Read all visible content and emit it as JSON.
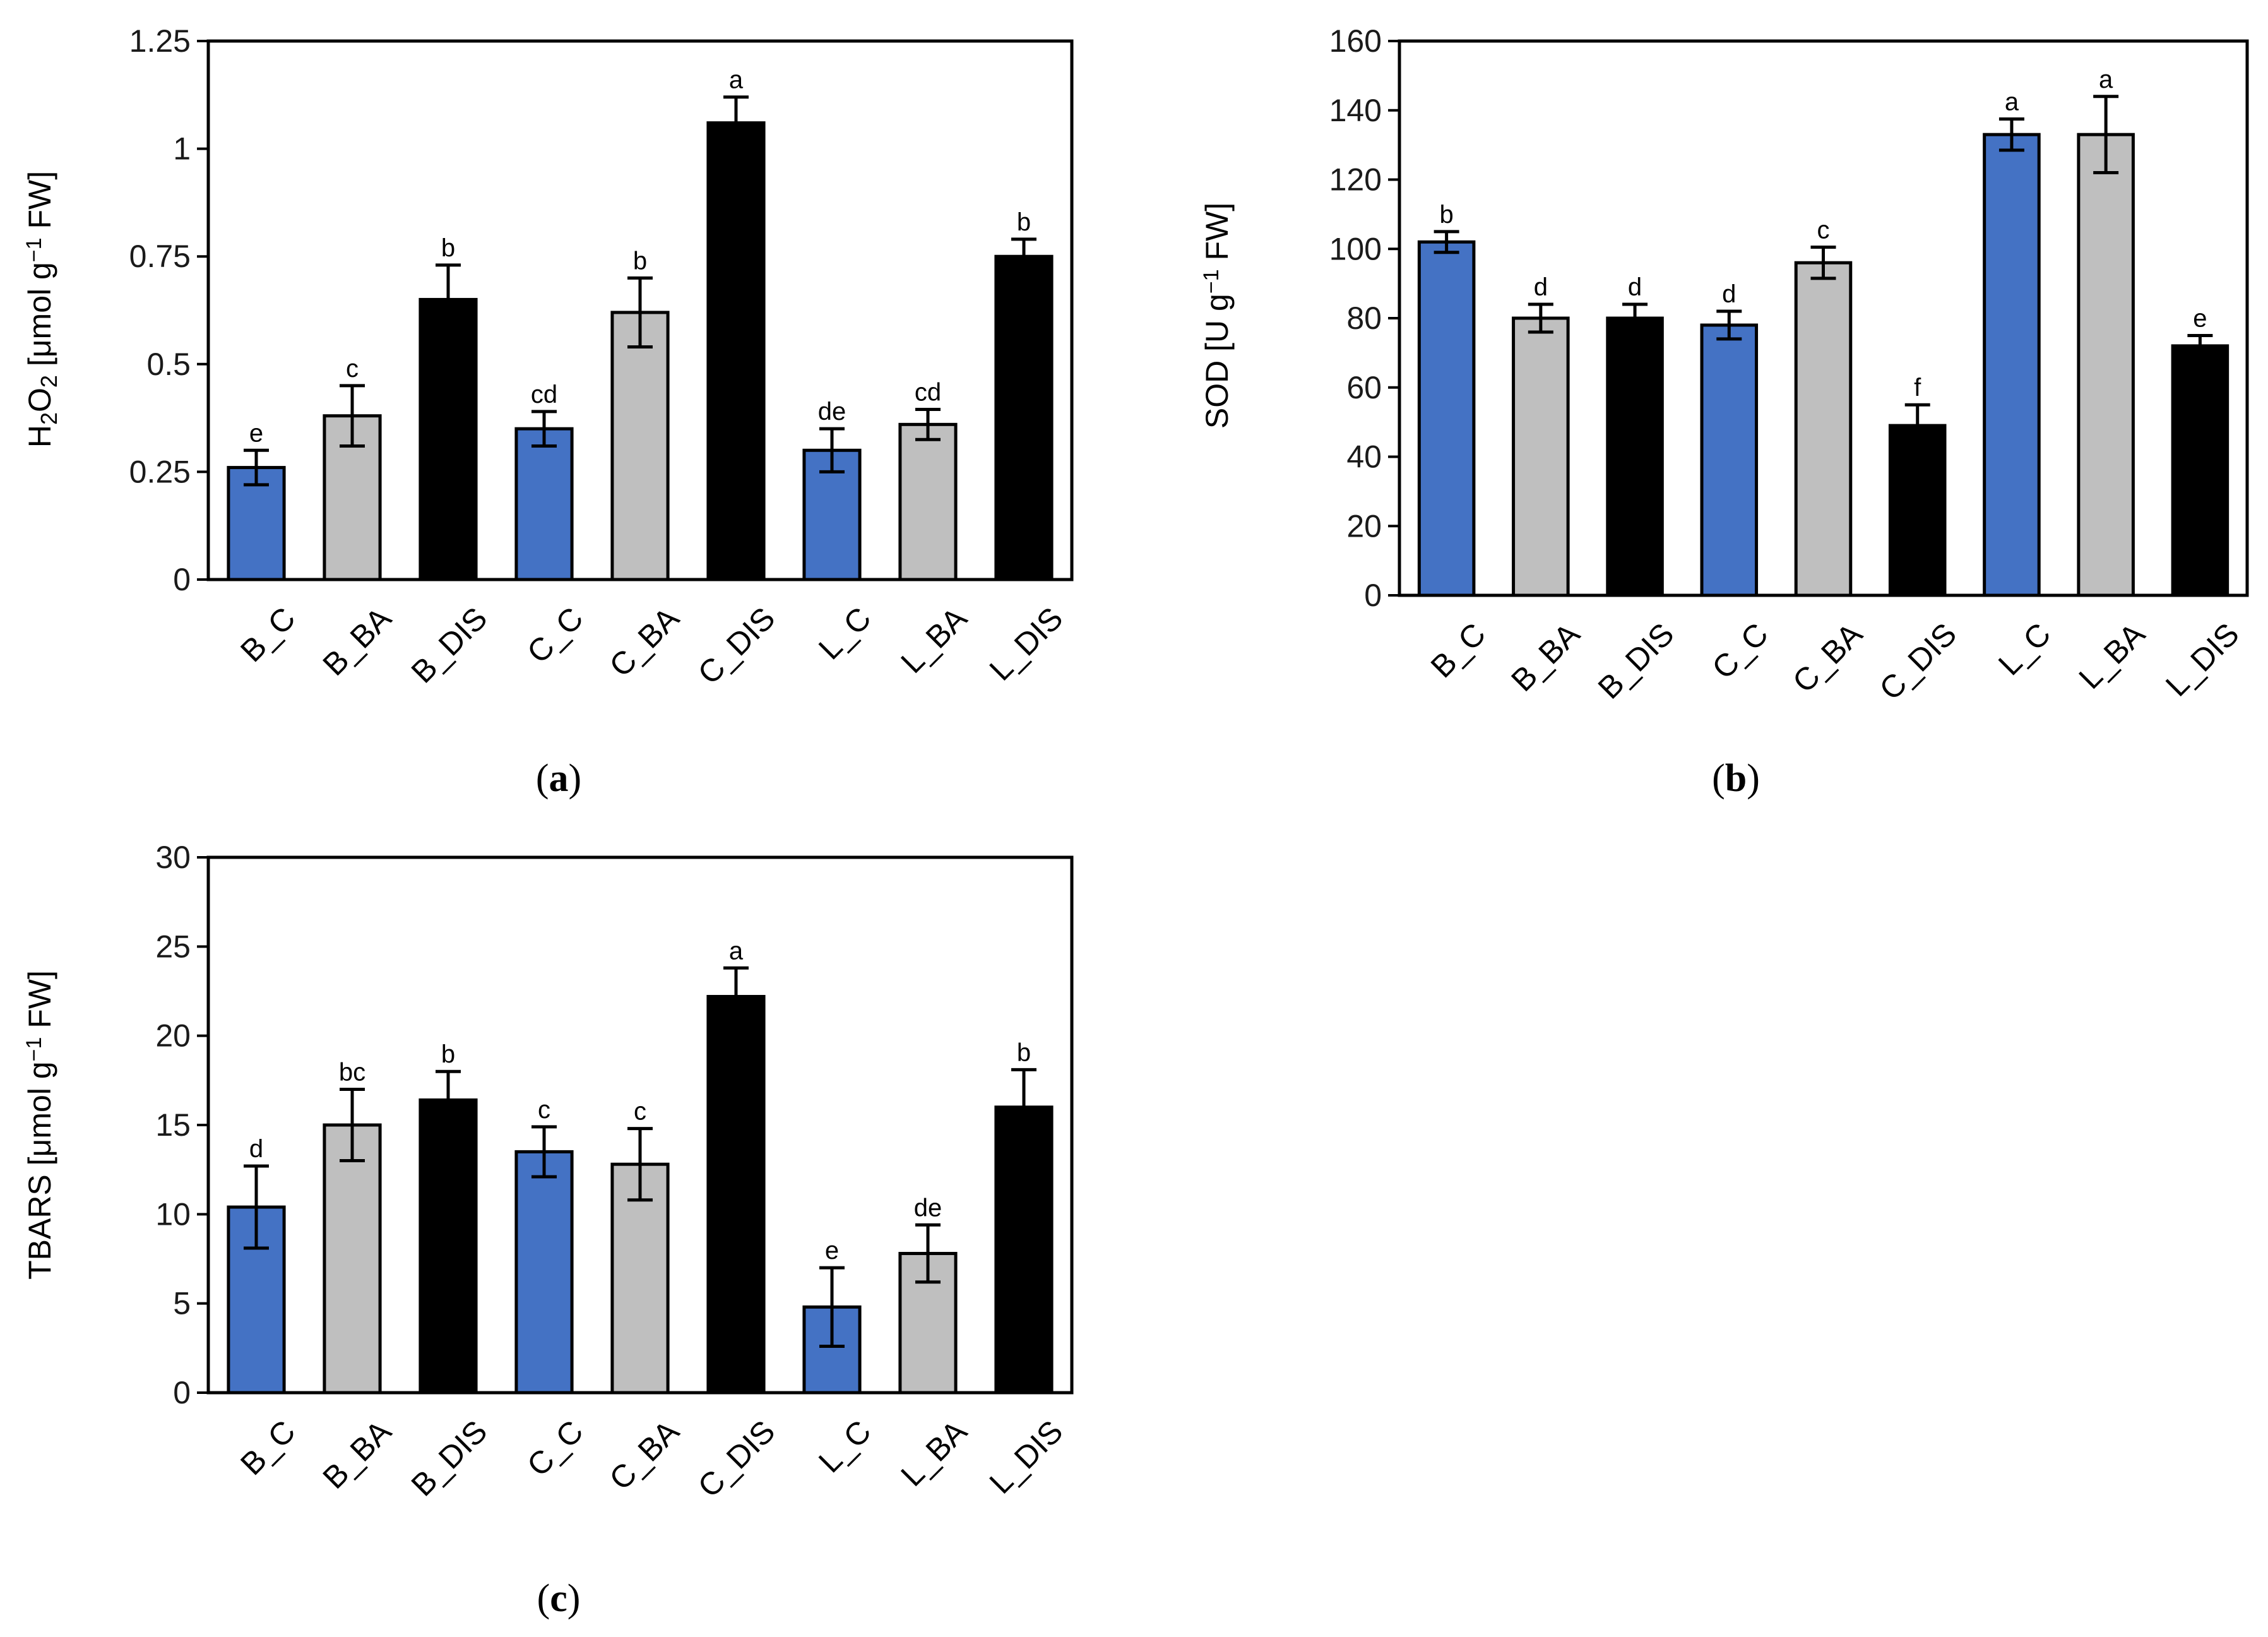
{
  "colors": {
    "C": "#4472C4",
    "BA": "#BFBFBF",
    "DIS": "#000000"
  },
  "chart_data": [
    {
      "type": "bar",
      "caption": "a",
      "ylabel": {
        "base": "H",
        "sub1": "2",
        "mid": "O",
        "sub2": "2",
        "rest1": " [μmol g",
        "sup": "−1",
        "rest2": " FW]"
      },
      "categories": [
        "B_C",
        "B_BA",
        "B_DIS",
        "C_C",
        "C_BA",
        "C_DIS",
        "L_C",
        "L_BA",
        "L_DIS"
      ],
      "values": [
        0.26,
        0.38,
        0.65,
        0.35,
        0.62,
        1.06,
        0.3,
        0.36,
        0.75
      ],
      "errors": [
        0.04,
        0.07,
        0.08,
        0.04,
        0.08,
        0.06,
        0.05,
        0.035,
        0.04
      ],
      "letters": [
        "e",
        "c",
        "b",
        "cd",
        "b",
        "a",
        "de",
        "cd",
        "b"
      ],
      "ylim": [
        0,
        1.25
      ],
      "yticks": [
        "0",
        "0.25",
        "0.5",
        "0.75",
        "1",
        "1.25"
      ],
      "ytick_values": [
        0,
        0.25,
        0.5,
        0.75,
        1,
        1.25
      ],
      "grid": false,
      "legend": "none"
    },
    {
      "type": "bar",
      "caption": "b",
      "ylabel": {
        "base": "SOD [U g",
        "sup": "−1",
        "rest2": " FW]"
      },
      "categories": [
        "B_C",
        "B_BA",
        "B_DIS",
        "C_C",
        "C_BA",
        "C_DIS",
        "L_C",
        "L_BA",
        "L_DIS"
      ],
      "values": [
        102,
        80,
        80,
        78,
        96,
        49,
        133,
        133,
        72
      ],
      "errors": [
        3,
        4,
        4,
        4,
        4.5,
        6,
        4.5,
        11,
        3
      ],
      "letters": [
        "b",
        "d",
        "d",
        "d",
        "c",
        "f",
        "a",
        "a",
        "e"
      ],
      "ylim": [
        0,
        160
      ],
      "yticks": [
        "0",
        "20",
        "40",
        "60",
        "80",
        "100",
        "120",
        "140",
        "160"
      ],
      "ytick_values": [
        0,
        20,
        40,
        60,
        80,
        100,
        120,
        140,
        160
      ],
      "grid": false,
      "legend": "none"
    },
    {
      "type": "bar",
      "caption": "c",
      "ylabel": {
        "base": "TBARS [μmol g",
        "sup": "−1",
        "rest2": " FW]"
      },
      "categories": [
        "B_C",
        "B_BA",
        "B_DIS",
        "C_C",
        "C_BA",
        "C_DIS",
        "L_C",
        "L_BA",
        "L_DIS"
      ],
      "values": [
        10.4,
        15.0,
        16.4,
        13.5,
        12.8,
        22.2,
        4.8,
        7.8,
        16.0
      ],
      "errors": [
        2.3,
        2.0,
        1.6,
        1.4,
        2.0,
        1.6,
        2.2,
        1.6,
        2.1
      ],
      "letters": [
        "d",
        "bc",
        "b",
        "c",
        "c",
        "a",
        "e",
        "de",
        "b"
      ],
      "ylim": [
        0,
        30
      ],
      "yticks": [
        "0",
        "5",
        "10",
        "15",
        "20",
        "25",
        "30"
      ],
      "ytick_values": [
        0,
        5,
        10,
        15,
        20,
        25,
        30
      ],
      "grid": false,
      "legend": "none"
    }
  ]
}
